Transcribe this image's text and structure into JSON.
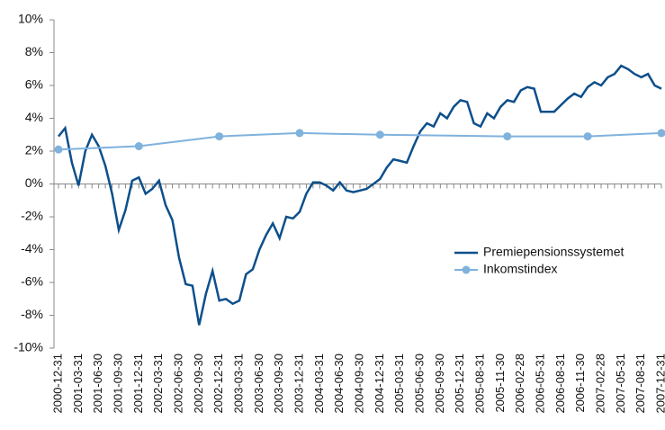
{
  "chart_data": {
    "type": "line",
    "categories": [
      "2000-12-31",
      null,
      null,
      "2001-03-31",
      null,
      null,
      "2001-06-30",
      null,
      null,
      "2001-09-30",
      null,
      null,
      "2001-12-31",
      null,
      null,
      "2002-03-31",
      null,
      null,
      "2002-06-30",
      null,
      null,
      "2002-09-30",
      null,
      null,
      "2002-12-31",
      null,
      null,
      "2003-03-31",
      null,
      null,
      "2003-06-30",
      null,
      null,
      "2003-09-30",
      null,
      null,
      "2003-12-31",
      null,
      null,
      "2004-03-31",
      null,
      null,
      "2004-06-30",
      null,
      null,
      "2004-09-30",
      null,
      null,
      "2004-12-31",
      null,
      null,
      "2005-03-31",
      null,
      null,
      "2005-06-30",
      null,
      null,
      "2005-09-30",
      null,
      null,
      "2005-12-31",
      null,
      null,
      "2005-08-31",
      null,
      null,
      "2005-11-30",
      null,
      null,
      "2006-02-28",
      null,
      null,
      "2006-05-31",
      null,
      null,
      "2006-08-31",
      null,
      null,
      "2006-11-30",
      null,
      null,
      "2007-02-28",
      null,
      null,
      "2007-05-31",
      null,
      null,
      "2007-08-31",
      null,
      null,
      "2007-12-31"
    ],
    "series": [
      {
        "name": "Premiepensionssystemet",
        "color": "#0d4f8b",
        "markers": false,
        "values": [
          2.9,
          3.4,
          1.3,
          -0.1,
          2.0,
          3.0,
          2.3,
          1.1,
          -0.6,
          -2.8,
          -1.6,
          0.2,
          0.4,
          -0.6,
          -0.3,
          0.2,
          -1.3,
          -2.2,
          -4.5,
          -6.1,
          -6.2,
          -8.6,
          -6.7,
          -5.3,
          -7.1,
          -7.0,
          -7.3,
          -7.1,
          -5.5,
          -5.2,
          -4.0,
          -3.1,
          -2.4,
          -3.3,
          -2.0,
          -2.1,
          -1.7,
          -0.6,
          0.1,
          0.1,
          -0.1,
          -0.4,
          0.1,
          -0.4,
          -0.5,
          -0.4,
          -0.3,
          0.0,
          0.3,
          1.0,
          1.5,
          1.4,
          1.3,
          2.3,
          3.2,
          3.7,
          3.5,
          4.3,
          4.0,
          4.7,
          5.1,
          5.0,
          3.7,
          3.5,
          4.3,
          4.0,
          4.7,
          5.1,
          5.0,
          5.7,
          5.9,
          5.8,
          4.4,
          4.4,
          4.4,
          4.8,
          5.2,
          5.5,
          5.3,
          5.9,
          6.2,
          6.0,
          6.5,
          6.7,
          7.2,
          7.0,
          6.7,
          6.5,
          6.7,
          6.0,
          5.8
        ]
      },
      {
        "name": "Inkomstindex",
        "color": "#7fb2dd",
        "markers": true,
        "connect_gaps": true,
        "values": [
          2.1,
          null,
          null,
          null,
          null,
          null,
          null,
          null,
          null,
          null,
          null,
          null,
          2.3,
          null,
          null,
          null,
          null,
          null,
          null,
          null,
          null,
          null,
          null,
          null,
          2.9,
          null,
          null,
          null,
          null,
          null,
          null,
          null,
          null,
          null,
          null,
          null,
          3.1,
          null,
          null,
          null,
          null,
          null,
          null,
          null,
          null,
          null,
          null,
          null,
          3.0,
          null,
          null,
          null,
          null,
          null,
          null,
          null,
          null,
          null,
          null,
          null,
          null,
          null,
          null,
          null,
          null,
          null,
          null,
          2.9,
          null,
          null,
          null,
          null,
          null,
          null,
          null,
          null,
          null,
          null,
          null,
          2.9,
          null,
          null,
          null,
          null,
          null,
          null,
          null,
          null,
          null,
          null,
          3.1
        ]
      }
    ],
    "ylim": [
      -10,
      10
    ],
    "yticks": [
      {
        "value": -10,
        "label": "-10%"
      },
      {
        "value": -8,
        "label": "-8%"
      },
      {
        "value": -6,
        "label": "-6%"
      },
      {
        "value": -4,
        "label": "-4%"
      },
      {
        "value": -2,
        "label": "-2%"
      },
      {
        "value": 0,
        "label": "0%"
      },
      {
        "value": 2,
        "label": "2%"
      },
      {
        "value": 4,
        "label": "4%"
      },
      {
        "value": 6,
        "label": "6%"
      },
      {
        "value": 8,
        "label": "8%"
      },
      {
        "value": 10,
        "label": "10%"
      }
    ],
    "grid": false,
    "legend": "right"
  }
}
